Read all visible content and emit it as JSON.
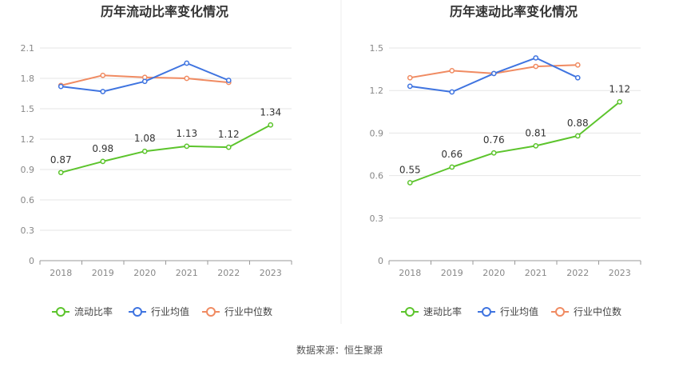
{
  "footer": "数据来源：恒生聚源",
  "chart_data": [
    {
      "type": "line",
      "title": "历年流动比率变化情况",
      "categories": [
        "2018",
        "2019",
        "2020",
        "2021",
        "2022",
        "2023"
      ],
      "ylim": [
        0,
        2.1
      ],
      "yticks": [
        "0",
        "0.3",
        "0.6",
        "0.9",
        "1.2",
        "1.5",
        "1.8",
        "2.1"
      ],
      "grid": true,
      "legend_position": "bottom",
      "series": [
        {
          "name": "流动比率",
          "color": "#5cc42c",
          "values": [
            0.87,
            0.98,
            1.08,
            1.13,
            1.12,
            1.34
          ],
          "labels": [
            "0.87",
            "0.98",
            "1.08",
            "1.13",
            "1.12",
            "1.34"
          ]
        },
        {
          "name": "行业均值",
          "color": "#3f74e0",
          "values": [
            1.72,
            1.67,
            1.77,
            1.95,
            1.78,
            null
          ]
        },
        {
          "name": "行业中位数",
          "color": "#f08b62",
          "values": [
            1.73,
            1.83,
            1.81,
            1.8,
            1.76,
            null
          ]
        }
      ]
    },
    {
      "type": "line",
      "title": "历年速动比率变化情况",
      "categories": [
        "2018",
        "2019",
        "2020",
        "2021",
        "2022",
        "2023"
      ],
      "ylim": [
        0,
        1.5
      ],
      "yticks": [
        "0",
        "0.3",
        "0.6",
        "0.9",
        "1.2",
        "1.5"
      ],
      "grid": true,
      "legend_position": "bottom",
      "series": [
        {
          "name": "速动比率",
          "color": "#5cc42c",
          "values": [
            0.55,
            0.66,
            0.76,
            0.81,
            0.88,
            1.12
          ],
          "labels": [
            "0.55",
            "0.66",
            "0.76",
            "0.81",
            "0.88",
            "1.12"
          ]
        },
        {
          "name": "行业均值",
          "color": "#3f74e0",
          "values": [
            1.23,
            1.19,
            1.32,
            1.43,
            1.29,
            null
          ]
        },
        {
          "name": "行业中位数",
          "color": "#f08b62",
          "values": [
            1.29,
            1.34,
            1.32,
            1.37,
            1.38,
            null
          ]
        }
      ]
    }
  ]
}
